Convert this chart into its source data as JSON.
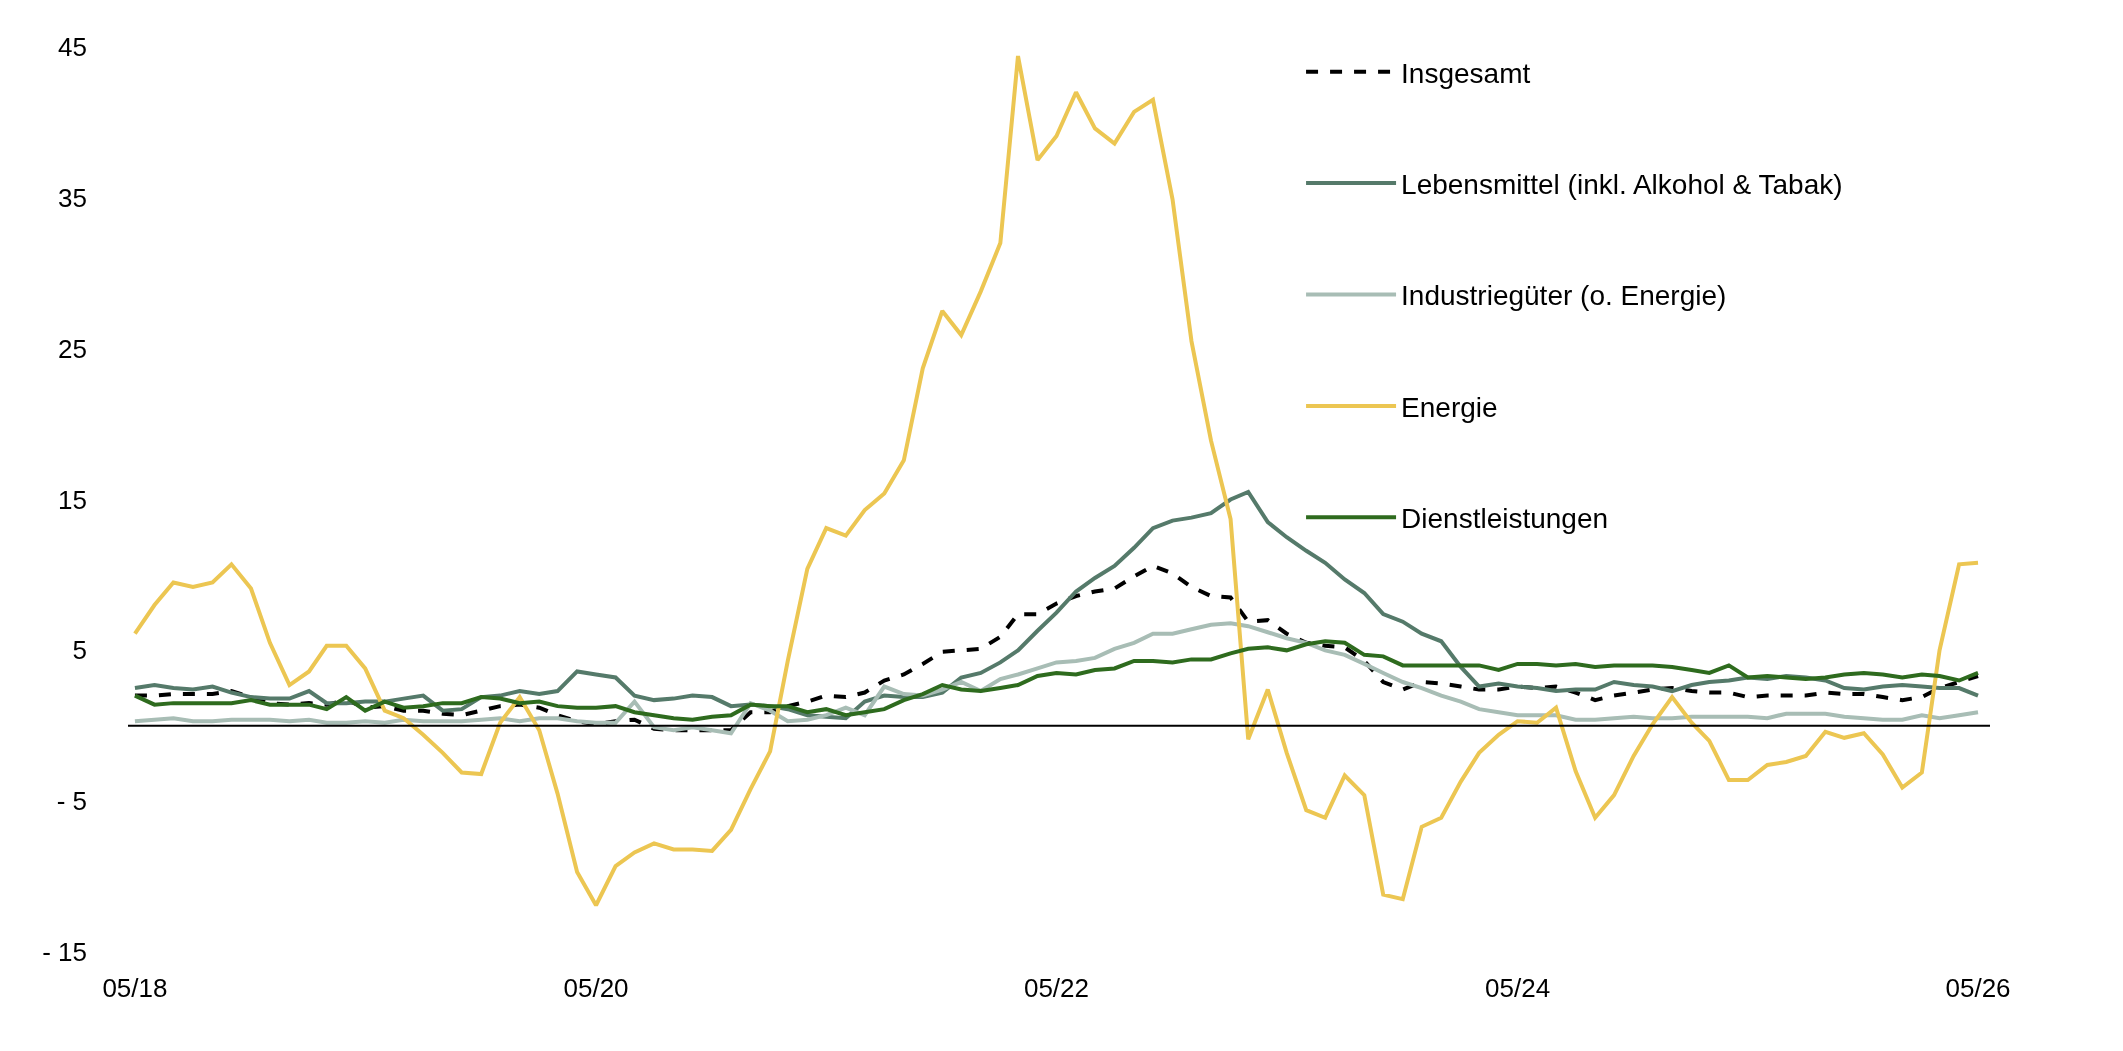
{
  "chart_data": {
    "type": "line",
    "x": [
      "2018-05",
      "2018-06",
      "2018-07",
      "2018-08",
      "2018-09",
      "2018-10",
      "2018-11",
      "2018-12",
      "2019-01",
      "2019-02",
      "2019-03",
      "2019-04",
      "2019-05",
      "2019-06",
      "2019-07",
      "2019-08",
      "2019-09",
      "2019-10",
      "2019-11",
      "2019-12",
      "2020-01",
      "2020-02",
      "2020-03",
      "2020-04",
      "2020-05",
      "2020-06",
      "2020-07",
      "2020-08",
      "2020-09",
      "2020-10",
      "2020-11",
      "2020-12",
      "2021-01",
      "2021-02",
      "2021-03",
      "2021-04",
      "2021-05",
      "2021-06",
      "2021-07",
      "2021-08",
      "2021-09",
      "2021-10",
      "2021-11",
      "2021-12",
      "2022-01",
      "2022-02",
      "2022-03",
      "2022-04",
      "2022-05",
      "2022-06",
      "2022-07",
      "2022-08",
      "2022-09",
      "2022-10",
      "2022-11",
      "2022-12",
      "2023-01",
      "2023-02",
      "2023-03",
      "2023-04",
      "2023-05",
      "2023-06",
      "2023-07",
      "2023-08",
      "2023-09",
      "2023-10",
      "2023-11",
      "2023-12",
      "2024-01",
      "2024-02",
      "2024-03",
      "2024-04",
      "2024-05",
      "2024-06",
      "2024-07",
      "2024-08",
      "2024-09",
      "2024-10",
      "2024-11",
      "2024-12",
      "2025-01",
      "2025-02",
      "2025-03",
      "2025-04",
      "2025-05",
      "2025-06",
      "2025-07",
      "2025-08",
      "2025-09",
      "2025-10",
      "2025-11",
      "2025-12",
      "2026-01",
      "2026-02",
      "2026-03",
      "2026-04",
      "2026-05"
    ],
    "series": [
      {
        "name": "Insgesamt",
        "color": "#000000",
        "line_style": "dashed",
        "values": [
          2.0,
          2.0,
          2.1,
          2.1,
          2.1,
          2.3,
          1.9,
          1.5,
          1.4,
          1.5,
          1.4,
          1.7,
          1.2,
          1.3,
          1.0,
          1.0,
          0.8,
          0.7,
          1.0,
          1.3,
          1.4,
          1.2,
          0.7,
          0.3,
          0.1,
          0.3,
          0.4,
          -0.2,
          -0.3,
          -0.3,
          -0.3,
          -0.3,
          0.9,
          0.9,
          1.3,
          1.6,
          2.0,
          1.9,
          2.2,
          3.0,
          3.4,
          4.1,
          4.9,
          5.0,
          5.1,
          5.9,
          7.4,
          7.4,
          8.1,
          8.6,
          8.9,
          9.1,
          9.9,
          10.6,
          10.1,
          9.2,
          8.6,
          8.5,
          6.9,
          7.0,
          6.1,
          5.5,
          5.3,
          5.2,
          4.3,
          2.9,
          2.4,
          2.9,
          2.8,
          2.6,
          2.4,
          2.4,
          2.6,
          2.5,
          2.6,
          2.2,
          1.7,
          2.0,
          2.2,
          2.4,
          2.5,
          2.3,
          2.2,
          2.2,
          1.9,
          2.0,
          2.0,
          2.0,
          2.2,
          2.1,
          2.1,
          1.9,
          1.7,
          1.9,
          2.5,
          2.9,
          3.3
        ]
      },
      {
        "name": "Lebensmittel (inkl. Alkohol & Tabak)",
        "color": "#557a6a",
        "values": [
          2.5,
          2.7,
          2.5,
          2.4,
          2.6,
          2.2,
          1.9,
          1.8,
          1.8,
          2.3,
          1.5,
          1.5,
          1.6,
          1.6,
          1.8,
          2.0,
          1.0,
          1.1,
          1.9,
          2.0,
          2.3,
          2.1,
          2.3,
          3.6,
          3.4,
          3.2,
          2.0,
          1.7,
          1.8,
          2.0,
          1.9,
          1.3,
          1.4,
          1.3,
          1.1,
          0.7,
          0.6,
          0.5,
          1.6,
          2.0,
          1.9,
          1.9,
          2.2,
          3.2,
          3.5,
          4.2,
          5.0,
          6.3,
          7.5,
          8.9,
          9.8,
          10.6,
          11.8,
          13.1,
          13.6,
          13.8,
          14.1,
          15.0,
          15.5,
          13.5,
          12.5,
          11.6,
          10.8,
          9.7,
          8.8,
          7.4,
          6.9,
          6.1,
          5.6,
          3.9,
          2.6,
          2.8,
          2.6,
          2.5,
          2.3,
          2.4,
          2.4,
          2.9,
          2.7,
          2.6,
          2.3,
          2.7,
          2.9,
          3.0,
          3.2,
          3.1,
          3.3,
          3.2,
          3.0,
          2.5,
          2.4,
          2.6,
          2.7,
          2.6,
          2.5,
          2.5,
          2.0
        ]
      },
      {
        "name": "Industriegüter (o. Energie)",
        "color": "#a8bdb5",
        "values": [
          0.3,
          0.4,
          0.5,
          0.3,
          0.3,
          0.4,
          0.4,
          0.4,
          0.3,
          0.4,
          0.2,
          0.2,
          0.3,
          0.2,
          0.4,
          0.3,
          0.3,
          0.3,
          0.4,
          0.5,
          0.3,
          0.5,
          0.5,
          0.3,
          0.2,
          0.2,
          1.6,
          -0.1,
          -0.3,
          -0.1,
          -0.3,
          -0.5,
          1.5,
          1.0,
          0.3,
          0.4,
          0.7,
          1.2,
          0.7,
          2.6,
          2.1,
          2.0,
          2.4,
          2.9,
          2.3,
          3.1,
          3.4,
          3.8,
          4.2,
          4.3,
          4.5,
          5.1,
          5.5,
          6.1,
          6.1,
          6.4,
          6.7,
          6.8,
          6.6,
          6.2,
          5.8,
          5.5,
          5.0,
          4.7,
          4.1,
          3.5,
          2.9,
          2.5,
          2.0,
          1.6,
          1.1,
          0.9,
          0.7,
          0.7,
          0.7,
          0.4,
          0.4,
          0.5,
          0.6,
          0.5,
          0.5,
          0.6,
          0.6,
          0.6,
          0.6,
          0.5,
          0.8,
          0.8,
          0.8,
          0.6,
          0.5,
          0.4,
          0.4,
          0.7,
          0.5,
          0.7,
          0.9
        ]
      },
      {
        "name": "Energie",
        "color": "#ecc652",
        "values": [
          6.1,
          8.0,
          9.5,
          9.2,
          9.5,
          10.7,
          9.1,
          5.5,
          2.7,
          3.6,
          5.3,
          5.3,
          3.8,
          1.0,
          0.5,
          -0.6,
          -1.8,
          -3.1,
          -3.2,
          0.2,
          1.9,
          -0.3,
          -4.5,
          -9.7,
          -11.9,
          -9.3,
          -8.4,
          -7.8,
          -8.2,
          -8.2,
          -8.3,
          -6.9,
          -4.2,
          -1.7,
          4.3,
          10.4,
          13.1,
          12.6,
          14.3,
          15.4,
          17.6,
          23.7,
          27.5,
          25.9,
          28.8,
          32.0,
          44.4,
          37.5,
          39.1,
          42.0,
          39.6,
          38.6,
          40.7,
          41.5,
          34.9,
          25.5,
          18.9,
          13.7,
          -0.9,
          2.4,
          -1.8,
          -5.6,
          -6.1,
          -3.3,
          -4.6,
          -11.2,
          -11.5,
          -6.7,
          -6.1,
          -3.7,
          -1.8,
          -0.6,
          0.3,
          0.2,
          1.2,
          -3.0,
          -6.1,
          -4.6,
          -2.0,
          0.1,
          1.9,
          0.2,
          -1.0,
          -3.6,
          -3.6,
          -2.6,
          -2.4,
          -2.0,
          -0.4,
          -0.8,
          -0.5,
          -1.9,
          -4.1,
          -3.1,
          5.0,
          10.7,
          10.8
        ]
      },
      {
        "name": "Dienstleistungen",
        "color": "#2e6b1e",
        "values": [
          2.0,
          1.4,
          1.5,
          1.5,
          1.5,
          1.5,
          1.7,
          1.4,
          1.4,
          1.4,
          1.1,
          1.9,
          1.0,
          1.6,
          1.2,
          1.3,
          1.5,
          1.5,
          1.9,
          1.8,
          1.5,
          1.6,
          1.3,
          1.2,
          1.2,
          1.3,
          0.9,
          0.7,
          0.5,
          0.4,
          0.6,
          0.7,
          1.4,
          1.3,
          1.3,
          0.9,
          1.1,
          0.7,
          0.9,
          1.1,
          1.7,
          2.1,
          2.7,
          2.4,
          2.3,
          2.5,
          2.7,
          3.3,
          3.5,
          3.4,
          3.7,
          3.8,
          4.3,
          4.3,
          4.2,
          4.4,
          4.4,
          4.8,
          5.1,
          5.2,
          5.0,
          5.4,
          5.6,
          5.5,
          4.7,
          4.6,
          4.0,
          4.0,
          4.0,
          4.0,
          4.0,
          3.7,
          4.1,
          4.1,
          4.0,
          4.1,
          3.9,
          4.0,
          4.0,
          4.0,
          3.9,
          3.7,
          3.5,
          4.0,
          3.2,
          3.3,
          3.2,
          3.1,
          3.2,
          3.4,
          3.5,
          3.4,
          3.2,
          3.4,
          3.3,
          3.0,
          3.5
        ]
      }
    ],
    "xlim": [
      "2018-04-20",
      "2026-05-20"
    ],
    "xticks": [
      {
        "value": "2018-05",
        "label": "05/18"
      },
      {
        "value": "2020-05",
        "label": "05/20"
      },
      {
        "value": "2022-05",
        "label": "05/22"
      },
      {
        "value": "2024-05",
        "label": "05/24"
      },
      {
        "value": "2026-05",
        "label": "05/26"
      }
    ],
    "ylim": [
      -15,
      45
    ],
    "yticks": [
      45,
      35,
      25,
      15,
      5,
      {
        "value": -5,
        "label": "- 5"
      },
      {
        "value": -15,
        "label": "- 15"
      }
    ],
    "ref_lines": [
      {
        "axis": "y",
        "value": 0,
        "color": "#000000"
      }
    ],
    "legend": "top right"
  }
}
